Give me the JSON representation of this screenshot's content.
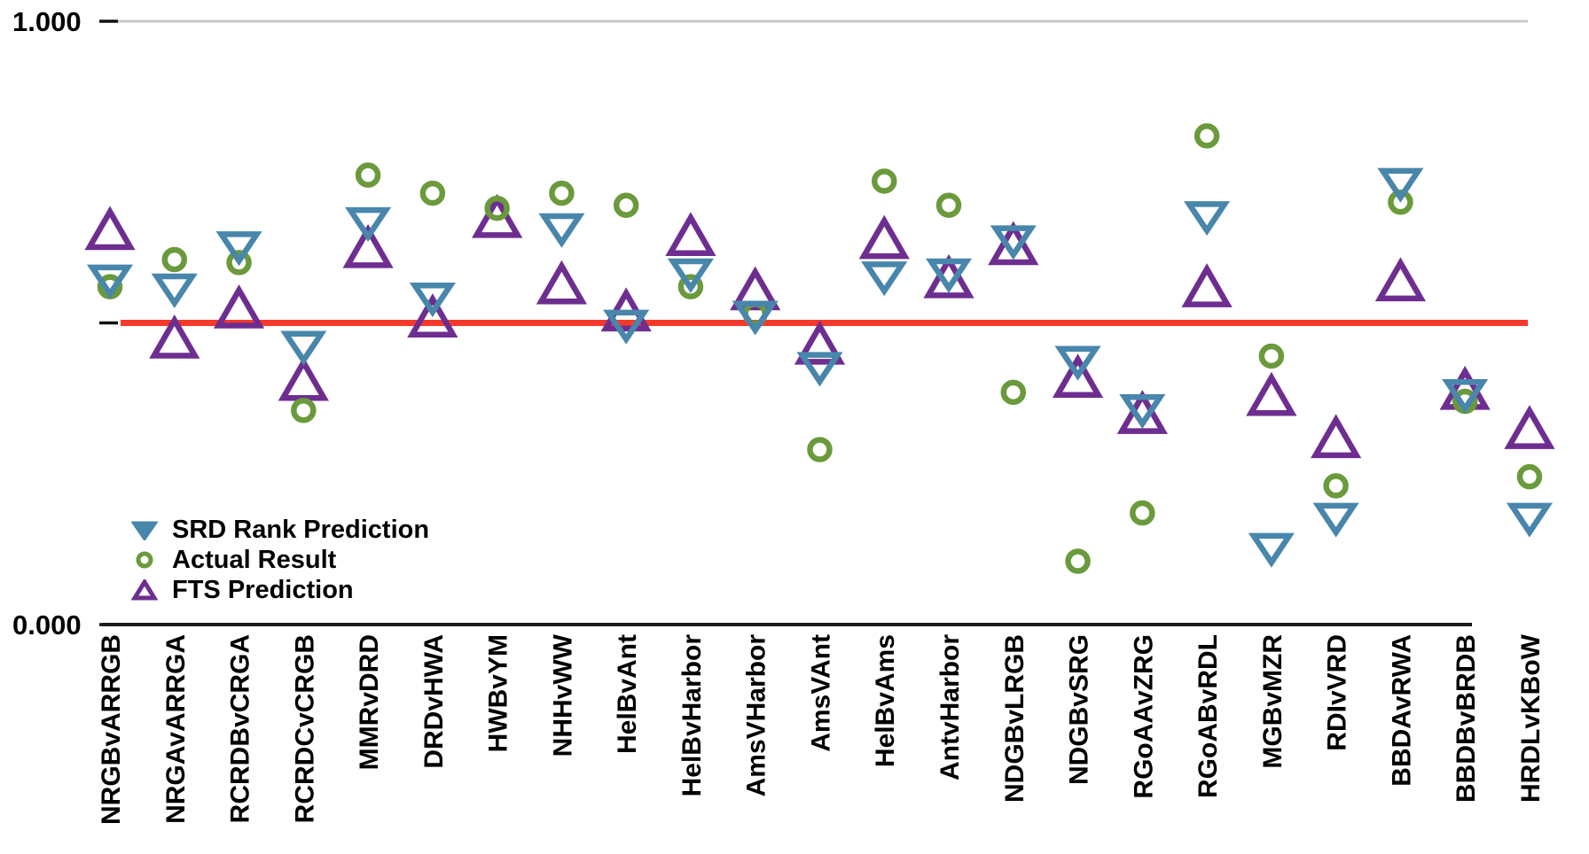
{
  "chart_data": {
    "type": "scatter",
    "title": "",
    "y_axis": {
      "min": 0.0,
      "max": 1.0,
      "ticks": [
        {
          "label": "1.000",
          "value": 1.0
        },
        {
          "label": "",
          "value": 0.5
        },
        {
          "label": "0.000",
          "value": 0.0
        }
      ]
    },
    "reference_line": {
      "value": 0.5,
      "color": "#f5392b"
    },
    "grid": "single top gridline",
    "legend_position": "bottom-left inside plot",
    "categories": [
      "NRGBvARRGB",
      "NRGAvARRGA",
      "RCRDBvCRGA",
      "RCRDCvCRGB",
      "MMRvDRD",
      "DRDvHWA",
      "HWBvYM",
      "NHHvWW",
      "HelBvAnt",
      "HelBvHarbor",
      "AmsVHarbor",
      "AmsVAnt",
      "HelBvAms",
      "AntvHarbor",
      "NDGBvLRGB",
      "NDGBvSRG",
      "RGoAAvZRG",
      "RGoABvRDL",
      "MGBvMZR",
      "RDIvVRD",
      "BBDAvRWA",
      "BBDBvBRDB",
      "HRDLvKBoW"
    ],
    "series": [
      {
        "name": "SRD Rank Prediction",
        "marker": "triangle-down",
        "color": "#4886ab",
        "values": [
          0.57,
          0.555,
          0.625,
          0.46,
          0.665,
          0.54,
          null,
          0.655,
          0.495,
          0.58,
          0.51,
          0.425,
          0.575,
          0.58,
          0.635,
          0.435,
          0.355,
          0.675,
          0.125,
          0.175,
          0.73,
          0.38,
          0.175
        ]
      },
      {
        "name": "Actual Result",
        "marker": "circle",
        "color": "#6a9a3c",
        "values": [
          0.56,
          0.605,
          0.6,
          0.355,
          0.745,
          0.715,
          0.69,
          0.715,
          0.695,
          0.56,
          0.515,
          0.29,
          0.735,
          0.695,
          0.385,
          0.105,
          0.185,
          0.81,
          0.445,
          0.23,
          0.7,
          0.37,
          0.245
        ]
      },
      {
        "name": "FTS Prediction",
        "marker": "triangle-up",
        "color": "#6e2e90",
        "values": [
          0.655,
          0.475,
          0.525,
          0.405,
          0.625,
          0.51,
          0.675,
          0.565,
          0.52,
          0.645,
          0.555,
          0.465,
          0.64,
          0.575,
          0.63,
          0.41,
          0.35,
          0.56,
          0.38,
          0.31,
          0.57,
          0.39,
          0.325
        ]
      }
    ],
    "colors": {
      "axis": "#1a1a1a",
      "gridline": "#c9c9c9",
      "text": "#000000"
    }
  }
}
